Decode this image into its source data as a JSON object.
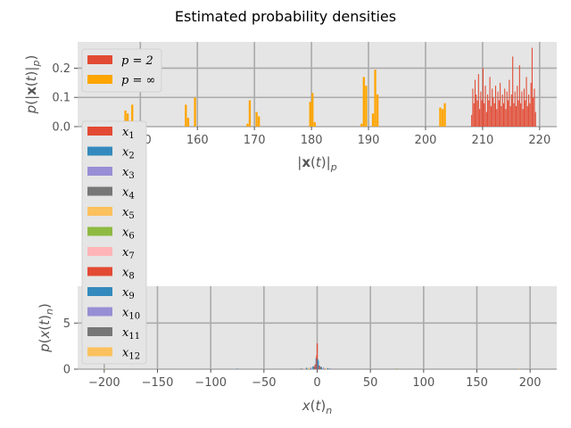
{
  "chart_data": [
    {
      "type": "histogram",
      "title": "Estimated probability densities",
      "xlabel": "|x(t)|_p",
      "ylabel": "p(|x(t)|_p)",
      "xlim": [
        139,
        223
      ],
      "ylim": [
        0,
        0.29
      ],
      "xticks": [
        "150",
        "160",
        "170",
        "180",
        "190",
        "200",
        "210",
        "220"
      ],
      "yticks": [
        "0.0",
        "0.1",
        "0.2"
      ],
      "grid": true,
      "legend_position": "top-left",
      "colors": {
        "p2": "#E24A33",
        "pinf": "#FFA500"
      },
      "series": [
        {
          "name": "p = 2",
          "legend_label": "p = 2",
          "bins": [
            [
              208.0,
              0.04
            ],
            [
              208.2,
              0.13
            ],
            [
              208.4,
              0.08
            ],
            [
              208.6,
              0.16
            ],
            [
              208.8,
              0.11
            ],
            [
              209.0,
              0.09
            ],
            [
              209.2,
              0.18
            ],
            [
              209.4,
              0.06
            ],
            [
              209.6,
              0.12
            ],
            [
              209.8,
              0.09
            ],
            [
              210.0,
              0.2
            ],
            [
              210.2,
              0.08
            ],
            [
              210.4,
              0.14
            ],
            [
              210.6,
              0.05
            ],
            [
              210.8,
              0.11
            ],
            [
              211.0,
              0.09
            ],
            [
              211.2,
              0.17
            ],
            [
              211.4,
              0.07
            ],
            [
              211.6,
              0.13
            ],
            [
              211.8,
              0.1
            ],
            [
              212.0,
              0.08
            ],
            [
              212.2,
              0.14
            ],
            [
              212.4,
              0.06
            ],
            [
              212.6,
              0.12
            ],
            [
              212.8,
              0.09
            ],
            [
              213.0,
              0.15
            ],
            [
              213.2,
              0.07
            ],
            [
              213.4,
              0.11
            ],
            [
              213.6,
              0.08
            ],
            [
              213.8,
              0.13
            ],
            [
              214.0,
              0.06
            ],
            [
              214.2,
              0.12
            ],
            [
              214.4,
              0.09
            ],
            [
              214.6,
              0.16
            ],
            [
              214.8,
              0.07
            ],
            [
              215.0,
              0.11
            ],
            [
              215.2,
              0.24
            ],
            [
              215.4,
              0.08
            ],
            [
              215.6,
              0.12
            ],
            [
              215.8,
              0.07
            ],
            [
              216.0,
              0.14
            ],
            [
              216.2,
              0.09
            ],
            [
              216.4,
              0.21
            ],
            [
              216.6,
              0.08
            ],
            [
              216.8,
              0.12
            ],
            [
              217.0,
              0.06
            ],
            [
              217.2,
              0.13
            ],
            [
              217.4,
              0.09
            ],
            [
              217.6,
              0.17
            ],
            [
              217.8,
              0.07
            ],
            [
              218.0,
              0.11
            ],
            [
              218.2,
              0.08
            ],
            [
              218.4,
              0.15
            ],
            [
              218.6,
              0.27
            ],
            [
              218.8,
              0.1
            ],
            [
              219.0,
              0.13
            ],
            [
              219.2,
              0.05
            ]
          ]
        },
        {
          "name": "p = ∞",
          "legend_label": "p = ∞",
          "bins": [
            [
              147.2,
              0.055
            ],
            [
              147.6,
              0.045
            ],
            [
              148.0,
              0.02
            ],
            [
              148.4,
              0.075
            ],
            [
              157.8,
              0.075
            ],
            [
              158.2,
              0.03
            ],
            [
              159.4,
              0.1
            ],
            [
              168.6,
              0.01
            ],
            [
              169.0,
              0.09
            ],
            [
              170.2,
              0.05
            ],
            [
              170.6,
              0.035
            ],
            [
              179.6,
              0.085
            ],
            [
              180.0,
              0.115
            ],
            [
              180.4,
              0.015
            ],
            [
              188.6,
              0.01
            ],
            [
              189.0,
              0.17
            ],
            [
              189.4,
              0.14
            ],
            [
              190.6,
              0.045
            ],
            [
              191.0,
              0.195
            ],
            [
              191.4,
              0.11
            ],
            [
              202.4,
              0.065
            ],
            [
              202.8,
              0.06
            ],
            [
              203.2,
              0.08
            ]
          ]
        }
      ]
    },
    {
      "type": "histogram",
      "title": "",
      "xlabel": "x(t)_n",
      "ylabel": "p(x(t)_n)",
      "xlim": [
        -225,
        225
      ],
      "ylim": [
        0,
        9
      ],
      "xticks": [
        "−200",
        "−150",
        "−100",
        "−50",
        "0",
        "50",
        "100",
        "150",
        "200"
      ],
      "yticks": [
        "0",
        "5"
      ],
      "grid": true,
      "legend_position": "upper-left (outside, spanning between panels)",
      "series": [
        {
          "name": "x_1",
          "sub": "1",
          "color": "#E24A33",
          "bins": [
            [
              0,
              2.8
            ],
            [
              -2,
              0.5
            ],
            [
              2,
              0.4
            ]
          ]
        },
        {
          "name": "x_2",
          "sub": "2",
          "color": "#348ABD",
          "bins": [
            [
              -1,
              1.2
            ],
            [
              1,
              0.9
            ],
            [
              -4,
              0.3
            ],
            [
              4,
              0.25
            ],
            [
              -10,
              0.15
            ],
            [
              10,
              0.12
            ]
          ]
        },
        {
          "name": "x_3",
          "sub": "3",
          "color": "#988ED5",
          "bins": [
            [
              -6,
              0.2
            ],
            [
              6,
              0.18
            ]
          ]
        },
        {
          "name": "x_4",
          "sub": "4",
          "color": "#777777",
          "bins": [
            [
              -3,
              0.3
            ],
            [
              3,
              0.25
            ]
          ]
        },
        {
          "name": "x_5",
          "sub": "5",
          "color": "#FBC15E",
          "bins": [
            [
              -8,
              0.15
            ],
            [
              8,
              0.12
            ]
          ]
        },
        {
          "name": "x_6",
          "sub": "6",
          "color": "#8EBA42",
          "bins": [
            [
              75,
              0.08
            ]
          ]
        },
        {
          "name": "x_7",
          "sub": "7",
          "color": "#FFB5B8",
          "bins": [
            [
              -12,
              0.1
            ]
          ]
        },
        {
          "name": "x_8",
          "sub": "8",
          "color": "#E24A33",
          "bins": [
            [
              -0.5,
              1.5
            ]
          ]
        },
        {
          "name": "x_9",
          "sub": "9",
          "color": "#348ABD",
          "bins": [
            [
              0.5,
              1.1
            ],
            [
              -75,
              0.06
            ]
          ]
        },
        {
          "name": "x_10",
          "sub": "10",
          "color": "#988ED5",
          "bins": [
            [
              12,
              0.1
            ]
          ]
        },
        {
          "name": "x_11",
          "sub": "11",
          "color": "#777777",
          "bins": [
            [
              -15,
              0.08
            ]
          ]
        },
        {
          "name": "x_12",
          "sub": "12",
          "color": "#FBC15E",
          "bins": [
            [
              -200,
              0.05
            ],
            [
              190,
              0.05
            ]
          ]
        }
      ]
    }
  ]
}
